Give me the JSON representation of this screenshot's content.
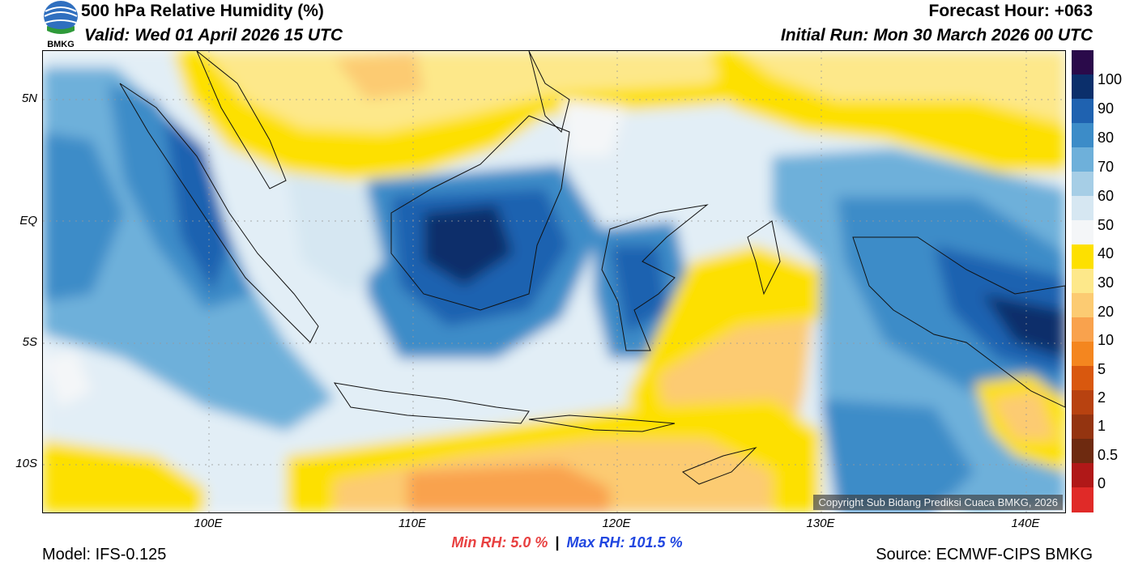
{
  "header": {
    "title": "500 hPa Relative Humidity (%)",
    "valid": "Valid: Wed 01 April 2026 15 UTC",
    "forecast_hour": "Forecast Hour: +063",
    "initial_run": "Initial Run: Mon 30 March 2026 00 UTC",
    "logo_text": "BMKG"
  },
  "map": {
    "lat_labels": [
      "5N",
      "EQ",
      "5S",
      "10S"
    ],
    "lon_labels": [
      "100E",
      "110E",
      "120E",
      "130E",
      "140E"
    ],
    "copyright": "Copyright Sub Bidang Prediksi Cuaca BMKG, 2026",
    "region": "Indonesia"
  },
  "colorbar": {
    "labels": [
      "100",
      "90",
      "80",
      "70",
      "60",
      "50",
      "40",
      "30",
      "20",
      "10",
      "5",
      "2",
      "1",
      "0.5",
      "0"
    ],
    "colors": [
      "#2a0a4a",
      "#0b2f6b",
      "#1f62b0",
      "#3c8cc8",
      "#6eb0da",
      "#a6cee6",
      "#d6e7f2",
      "#f4f6f8",
      "#fde000",
      "#fde88a",
      "#fccb72",
      "#f9a24d",
      "#f4861f",
      "#d9580e",
      "#b84210",
      "#943410",
      "#6e2a10",
      "#b01818",
      "#e02a28"
    ]
  },
  "stats": {
    "min_rh": "Min RH:   5.0 %",
    "separator": "|",
    "max_rh": "Max RH: 101.5 %"
  },
  "footer": {
    "model": "Model: IFS-0.125",
    "source": "Source: ECMWF-CIPS BMKG"
  }
}
